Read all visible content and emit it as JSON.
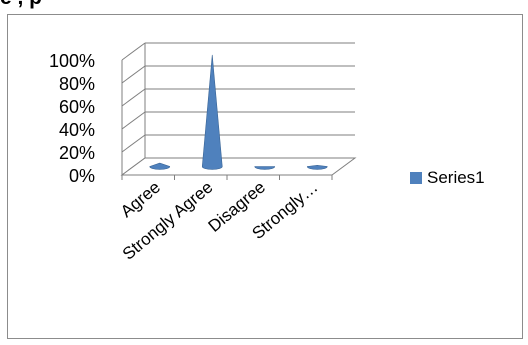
{
  "chart_data": {
    "type": "bar",
    "style": "3d-cone",
    "title_fragment": "e  ,  p",
    "categories": [
      "Agree",
      "Strongly Agree",
      "Disagree",
      "Strongly…"
    ],
    "series": [
      {
        "name": "Series1",
        "values": [
          3,
          97,
          0,
          1
        ]
      }
    ],
    "y_ticks": [
      "0%",
      "20%",
      "40%",
      "60%",
      "80%",
      "100%"
    ],
    "ylim": [
      0,
      100
    ],
    "grid": true,
    "legend_position": "right",
    "colors": {
      "series1": "#4f81bd",
      "grid": "#7f7f7f"
    }
  }
}
